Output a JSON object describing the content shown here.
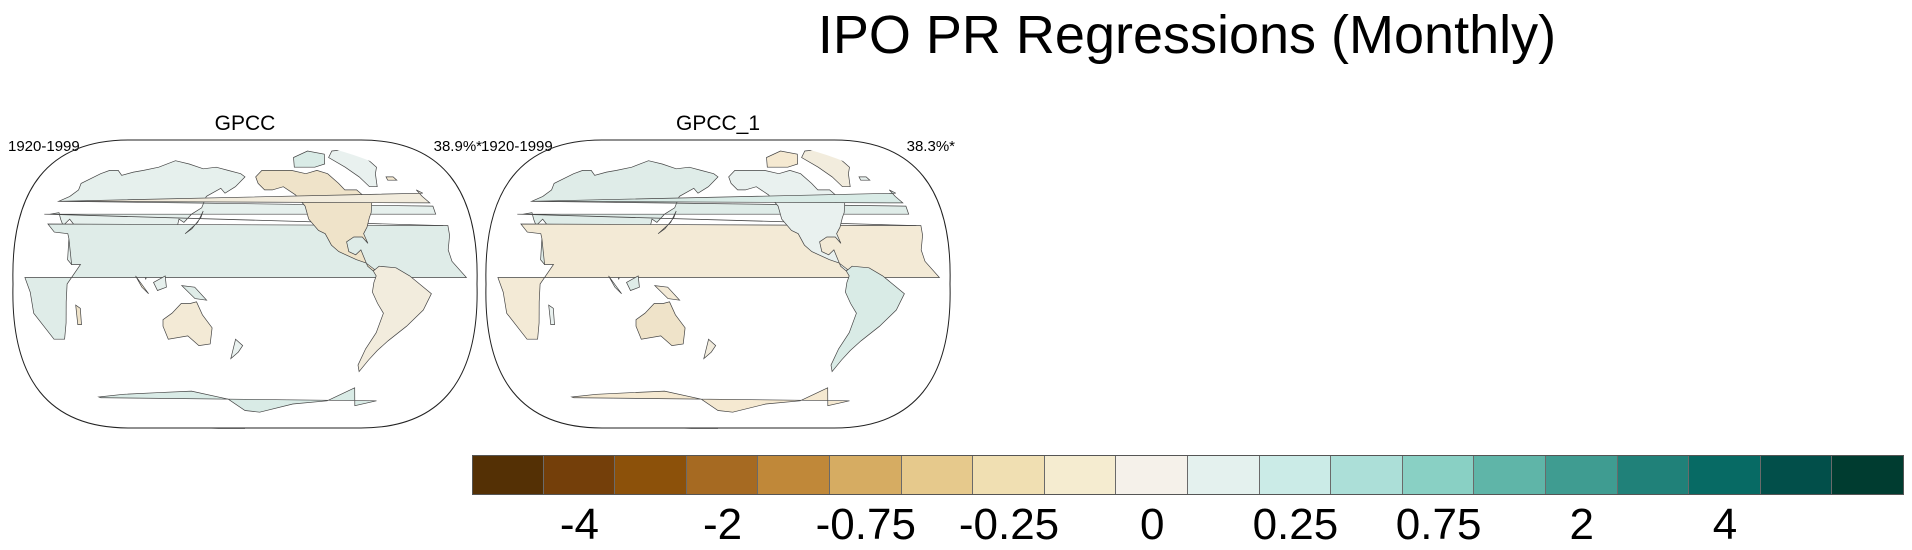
{
  "title": "IPO PR Regressions (Monthly)",
  "panels": [
    {
      "title": "GPCC",
      "period": "1920-1999",
      "value": "38.9%*"
    },
    {
      "title": "GPCC_1",
      "period": "1920-1999",
      "value": "38.3%*"
    }
  ],
  "colorbar": {
    "colors": [
      "#543005",
      "#743f0a",
      "#8c510a",
      "#a66a22",
      "#c08839",
      "#d6ac62",
      "#e6c98c",
      "#f0dfb2",
      "#f5ecd0",
      "#f5f1ea",
      "#e4f1ee",
      "#cbebe7",
      "#acdfd8",
      "#89d0c4",
      "#5fb5a8",
      "#3f9c91",
      "#208179",
      "#076a64",
      "#024f4a",
      "#003c30"
    ],
    "labels": [
      "-4",
      "-2",
      "-0.75",
      "-0.25",
      "0",
      "0.25",
      "0.75",
      "2",
      "4"
    ],
    "label_boundaries": [
      2,
      4,
      6,
      8,
      10,
      12,
      14,
      16,
      18
    ]
  }
}
